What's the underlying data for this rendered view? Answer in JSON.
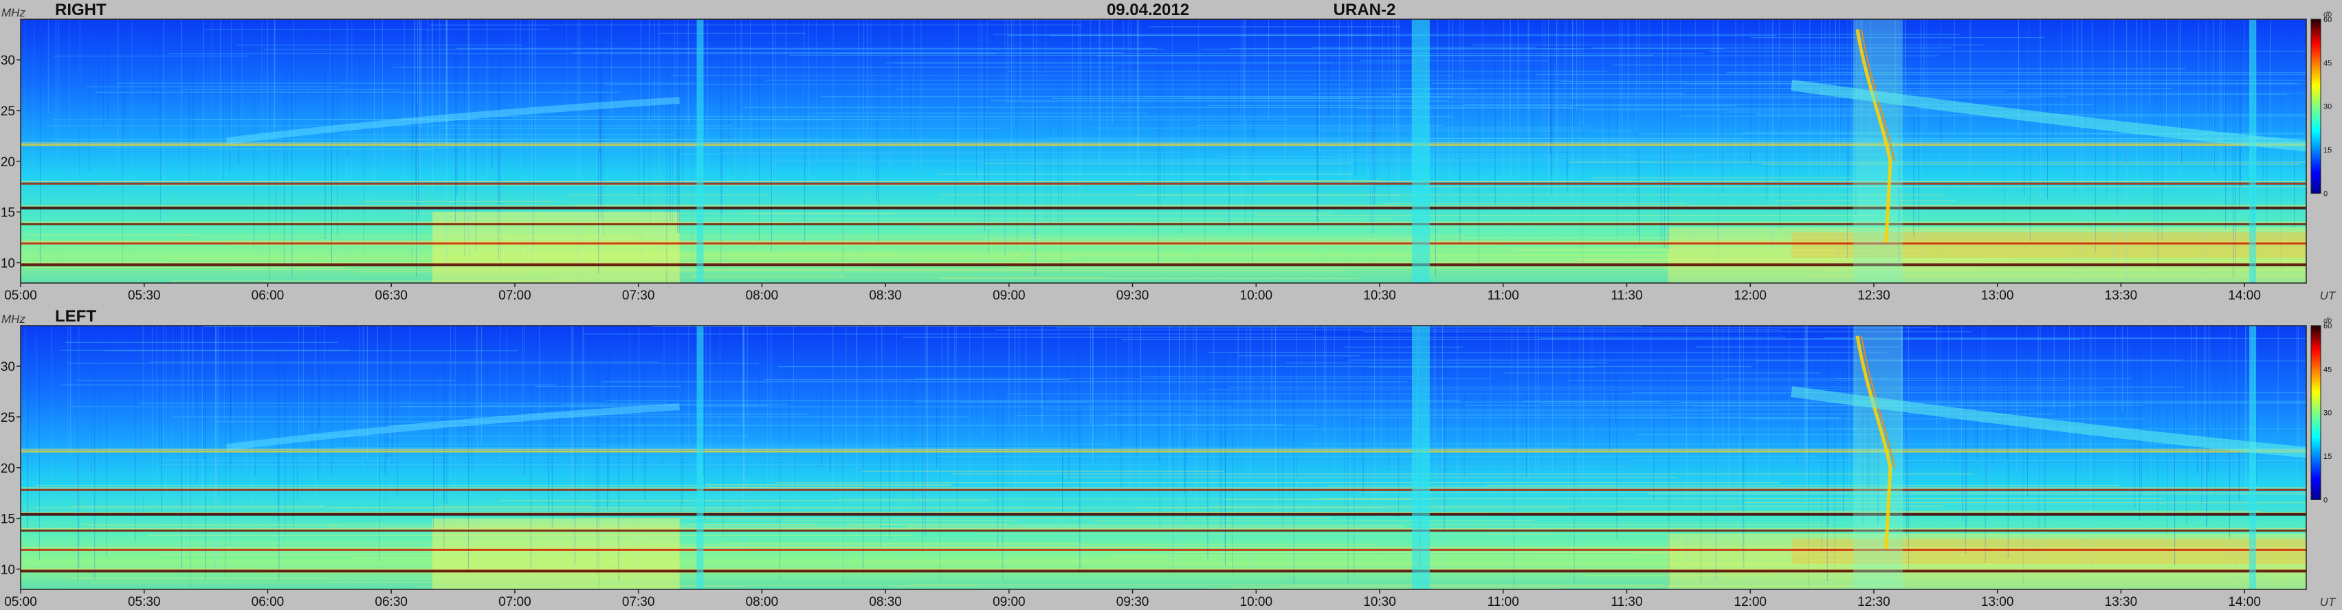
{
  "header": {
    "date": "09.04.2012",
    "instrument": "URAN-2"
  },
  "chart_data": [
    {
      "type": "heatmap",
      "panel_label": "RIGHT",
      "yunit": "MHz",
      "xunit": "UT",
      "ylim": [
        8,
        34
      ],
      "yticks": [
        10,
        15,
        20,
        25,
        30
      ],
      "xlim": [
        "05:00",
        "14:15"
      ],
      "xticks": [
        "05:00",
        "05:30",
        "06:00",
        "06:30",
        "07:00",
        "07:30",
        "08:00",
        "08:30",
        "09:00",
        "09:30",
        "10:00",
        "10:30",
        "11:00",
        "11:30",
        "12:00",
        "12:30",
        "13:00",
        "13:30",
        "14:00"
      ],
      "colorbar": {
        "unit": "db",
        "range": [
          0,
          60
        ],
        "ticks": [
          0,
          15,
          30,
          45,
          60
        ]
      },
      "features": {
        "horizontal_bands_mhz": [
          9.8,
          11.9,
          13.8,
          15.4,
          17.8,
          21.6
        ],
        "vertical_bursts_ut": [
          "07:45",
          "10:40",
          "14:02"
        ],
        "type_iii_burst_ut": [
          "12:25",
          "12:37"
        ],
        "drifting_band_ut": [
          "12:30",
          "14:15"
        ]
      }
    },
    {
      "type": "heatmap",
      "panel_label": "LEFT",
      "yunit": "MHz",
      "xunit": "UT",
      "ylim": [
        8,
        34
      ],
      "yticks": [
        10,
        15,
        20,
        25,
        30
      ],
      "xlim": [
        "05:00",
        "14:15"
      ],
      "xticks": [
        "05:00",
        "05:30",
        "06:00",
        "06:30",
        "07:00",
        "07:30",
        "08:00",
        "08:30",
        "09:00",
        "09:30",
        "10:00",
        "10:30",
        "11:00",
        "11:30",
        "12:00",
        "12:30",
        "13:00",
        "13:30",
        "14:00"
      ],
      "colorbar": {
        "unit": "db",
        "range": [
          0,
          60
        ],
        "ticks": [
          0,
          15,
          30,
          45,
          60
        ]
      },
      "features": {
        "horizontal_bands_mhz": [
          9.8,
          11.9,
          13.8,
          15.4,
          17.8,
          21.6
        ],
        "vertical_bursts_ut": [
          "07:45",
          "10:40",
          "14:02"
        ],
        "type_iii_burst_ut": [
          "12:25",
          "12:37"
        ],
        "drifting_band_ut": [
          "12:30",
          "14:15"
        ]
      }
    }
  ]
}
